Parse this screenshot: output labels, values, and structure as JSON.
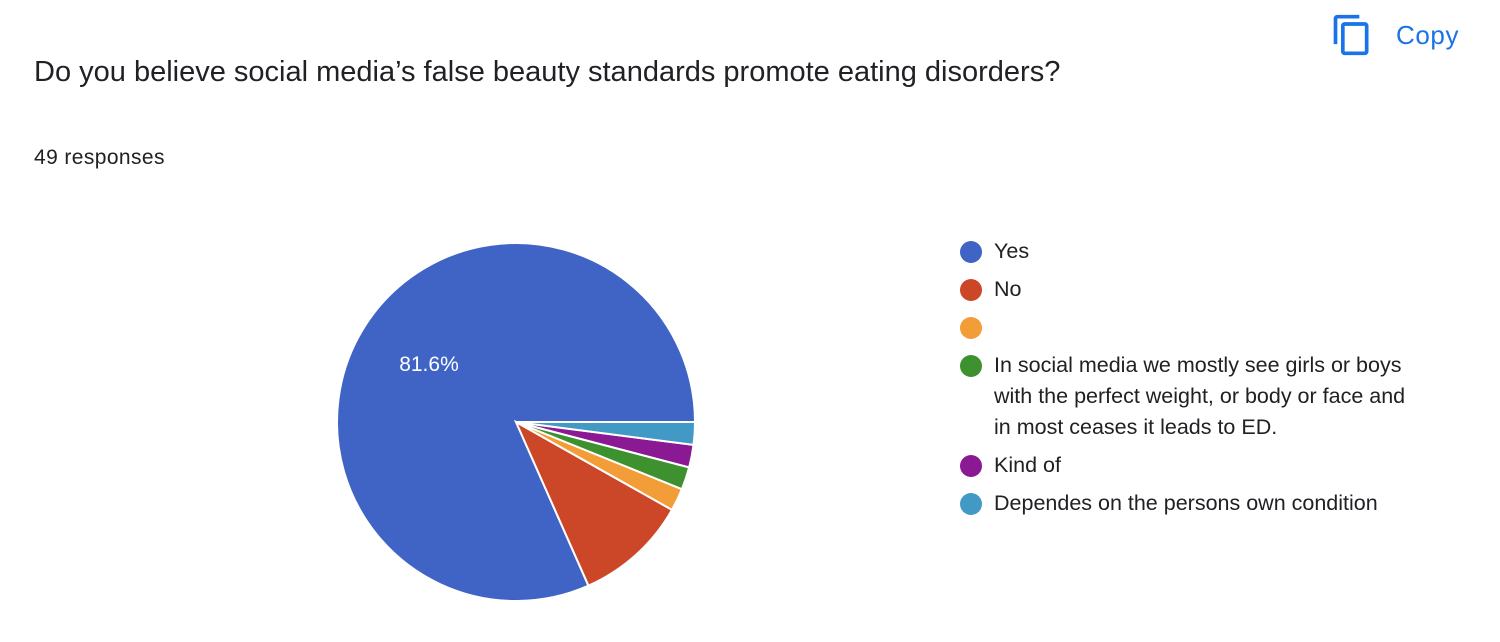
{
  "header": {
    "copy_label": "Copy",
    "copy_icon": "copy-icon",
    "accent_color": "#1a73e8"
  },
  "question": {
    "title": "Do you believe social media’s false beauty standards promote eating disorders?",
    "responses": "49 responses"
  },
  "chart_data": {
    "type": "pie",
    "total": 49,
    "categories": [
      "Yes",
      "No",
      "",
      "In social media we mostly see girls or boys with the perfect weight, or body or face and in most ceases it leads to ED.",
      "Kind of",
      "Dependes on the persons own condition"
    ],
    "values": [
      40,
      5,
      1,
      1,
      1,
      1
    ],
    "colors": [
      "#3f64c6",
      "#cc4628",
      "#f29d38",
      "#3d922f",
      "#8b1994",
      "#4399c6"
    ],
    "data_labels": [
      "81.6%",
      "",
      "",
      "",
      "",
      ""
    ],
    "legend_position": "right"
  }
}
